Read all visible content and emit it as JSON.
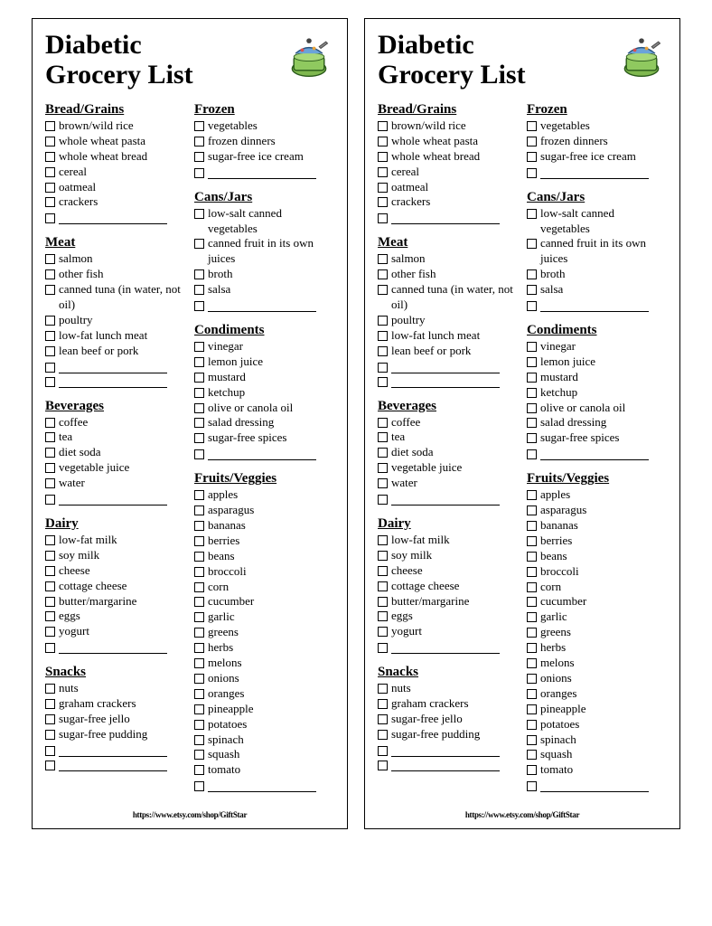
{
  "title_line1": "Diabetic",
  "title_line2": "Grocery List",
  "footer": "https://www.etsy.com/shop/GiftStar",
  "left_categories": [
    {
      "name": "Bread/Grains",
      "items": [
        "brown/wild rice",
        "whole wheat pasta",
        "whole wheat bread",
        "cereal",
        "oatmeal",
        "crackers"
      ],
      "blanks": 1
    },
    {
      "name": "Meat",
      "items": [
        "salmon",
        "other fish",
        "canned tuna (in water, not oil)",
        "poultry",
        "low-fat lunch meat",
        "lean beef or pork"
      ],
      "blanks": 2
    },
    {
      "name": "Beverages",
      "items": [
        "coffee",
        "tea",
        "diet soda",
        "vegetable juice",
        "water"
      ],
      "blanks": 1
    },
    {
      "name": "Dairy",
      "items": [
        "low-fat milk",
        "soy milk",
        "cheese",
        "cottage cheese",
        "butter/margarine",
        "eggs",
        "yogurt"
      ],
      "blanks": 1
    },
    {
      "name": "Snacks",
      "items": [
        "nuts",
        "graham crackers",
        "sugar-free jello",
        "sugar-free pudding"
      ],
      "blanks": 2
    }
  ],
  "right_categories": [
    {
      "name": "Frozen",
      "items": [
        "vegetables",
        "frozen dinners",
        "sugar-free ice cream"
      ],
      "blanks": 1
    },
    {
      "name": "Cans/Jars",
      "items": [
        "low-salt canned vegetables",
        "canned fruit in its own juices",
        "broth",
        "salsa"
      ],
      "blanks": 1
    },
    {
      "name": "Condiments",
      "items": [
        "vinegar",
        "lemon juice",
        "mustard",
        "ketchup",
        "olive or canola oil",
        "salad dressing",
        "sugar-free spices"
      ],
      "blanks": 1
    },
    {
      "name": "Fruits/Veggies",
      "items": [
        "apples",
        "asparagus",
        "bananas",
        "berries",
        "beans",
        "broccoli",
        "corn",
        "cucumber",
        "garlic",
        "greens",
        "herbs",
        "melons",
        "onions",
        "oranges",
        "pineapple",
        "potatoes",
        "spinach",
        "squash",
        "tomato"
      ],
      "blanks": 1
    }
  ]
}
